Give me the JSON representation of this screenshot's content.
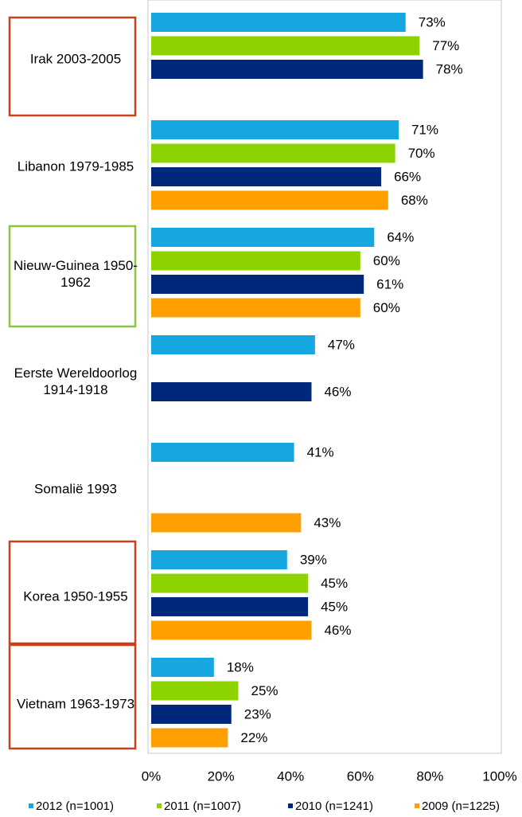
{
  "chart_data": {
    "type": "bar",
    "orientation": "horizontal",
    "categories": [
      "Irak 2003-2005",
      "Libanon 1979-1985",
      "Nieuw-Guinea 1950-1962",
      "Eerste Wereldoorlog 1914-1918",
      "Somalië 1993",
      "Korea 1950-1955",
      "Vietnam 1963-1973"
    ],
    "series": [
      {
        "name": "2012 (n=1001)",
        "color": "#16a6e0",
        "values": [
          73,
          71,
          64,
          47,
          41,
          39,
          18
        ],
        "value_labels": [
          "73%",
          "71%",
          "64%",
          "47%",
          "41%",
          "39%",
          "18%"
        ]
      },
      {
        "name": "2011 (n=1007)",
        "color": "#8cd300",
        "values": [
          77,
          70,
          60,
          null,
          null,
          45,
          25
        ],
        "value_labels": [
          "77%",
          "70%",
          "60%",
          null,
          null,
          "45%",
          "25%"
        ]
      },
      {
        "name": "2010 (n=1241)",
        "color": "#00287a",
        "values": [
          78,
          66,
          61,
          46,
          null,
          45,
          23
        ],
        "value_labels": [
          "78%",
          "66%",
          "61%",
          "46%",
          null,
          "45%",
          "23%"
        ]
      },
      {
        "name": "2009 (n=1225)",
        "color": "#ff9f00",
        "values": [
          null,
          68,
          60,
          null,
          43,
          46,
          22
        ],
        "value_labels": [
          null,
          "68%",
          "60%",
          null,
          "43%",
          "46%",
          "22%"
        ]
      }
    ],
    "xlim": [
      0,
      100
    ],
    "xticks": [
      {
        "value": 0,
        "label": "0%"
      },
      {
        "value": 20,
        "label": "20%"
      },
      {
        "value": 40,
        "label": "40%"
      },
      {
        "value": 60,
        "label": "60%"
      },
      {
        "value": 80,
        "label": "80%"
      },
      {
        "value": 100,
        "label": "100%"
      }
    ],
    "legend": "bottom"
  }
}
